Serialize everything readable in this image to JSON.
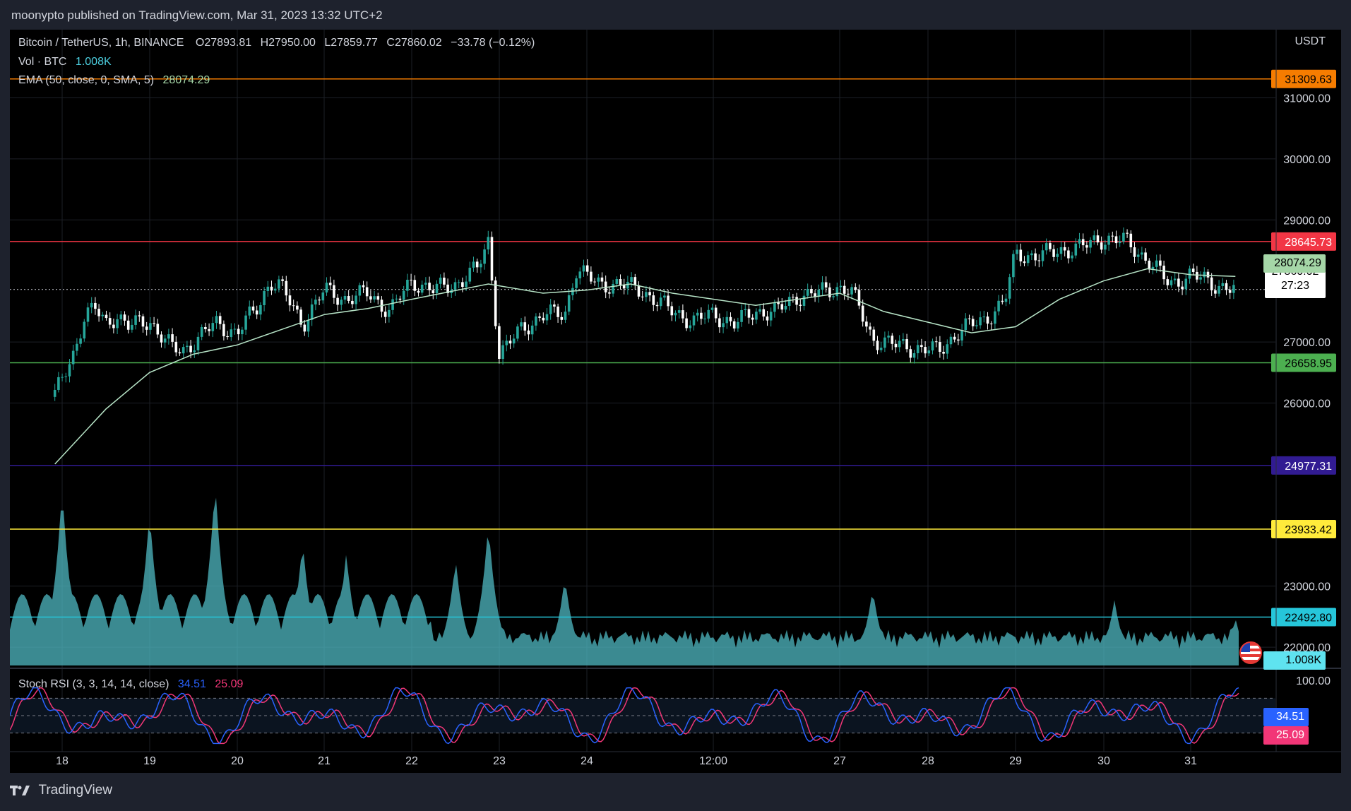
{
  "header": {
    "published": "moonypto published on TradingView.com, Mar 31, 2023 13:32 UTC+2"
  },
  "legend": {
    "symbol": "Bitcoin / TetherUS, 1h, BINANCE",
    "o_label": "O",
    "o": "27893.81",
    "h_label": "H",
    "h": "27950.00",
    "l_label": "L",
    "l": "27859.77",
    "c_label": "C",
    "c": "27860.02",
    "change": "−33.78 (−0.12%)",
    "vol_label": "Vol · BTC",
    "vol": "1.008K",
    "ema_label": "EMA (50, close, 0, SMA, 5)",
    "ema": "28074.29",
    "stoch_label": "Stoch RSI (3, 3, 14, 14, close)",
    "stoch_k": "34.51",
    "stoch_d": "25.09"
  },
  "price_axis": {
    "currency": "USDT",
    "ticks": [
      "31000.00",
      "30000.00",
      "29000.00",
      "27000.00",
      "26000.00",
      "23000.00",
      "22000.00"
    ]
  },
  "stoch_axis": {
    "ticks": [
      "100.00"
    ]
  },
  "time_axis": {
    "labels": [
      "18",
      "19",
      "20",
      "21",
      "22",
      "23",
      "24",
      "12:00",
      "27",
      "28",
      "29",
      "30",
      "31"
    ]
  },
  "price_lines": [
    {
      "value": "31309.63",
      "color": "#f57c00",
      "text_color": "#000000"
    },
    {
      "value": "28645.73",
      "color": "#f23645",
      "text_color": "#ffffff"
    },
    {
      "value": "26658.95",
      "color": "#4caf50",
      "text_color": "#000000"
    },
    {
      "value": "24977.31",
      "color": "#311b92",
      "text_color": "#ffffff"
    },
    {
      "value": "23933.42",
      "color": "#ffeb3b",
      "text_color": "#000000"
    },
    {
      "value": "22492.80",
      "color": "#26c6da",
      "text_color": "#000000"
    }
  ],
  "markers": {
    "ema": {
      "value": "28074.29",
      "color": "#a5d6a7"
    },
    "last": {
      "value": "27860.02",
      "countdown": "27:23"
    },
    "volume": {
      "value": "1.008K",
      "color": "#5fe3f0"
    },
    "stoch_k": {
      "value": "34.51",
      "color": "#2962ff"
    },
    "stoch_d": {
      "value": "25.09",
      "color": "#f23677"
    }
  },
  "colors": {
    "up": "#26a69a",
    "down": "#ef5350",
    "ema": "#b7e4c7",
    "volume": "#4fb8c2",
    "stoch_k": "#2962ff",
    "stoch_d": "#f23677"
  },
  "footer": {
    "brand": "TradingView"
  },
  "chart_data": {
    "type": "candlestick",
    "symbol": "BTCUSDT",
    "interval": "1h",
    "y_range": [
      21700,
      31700
    ],
    "price_series": [
      [
        "17 22:00",
        26100
      ],
      [
        "18 00:00",
        26400
      ],
      [
        "18 03:00",
        26800
      ],
      [
        "18 06:00",
        27400
      ],
      [
        "18 09:00",
        27550
      ],
      [
        "18 12:00",
        27300
      ],
      [
        "18 15:00",
        27450
      ],
      [
        "18 18:00",
        27250
      ],
      [
        "19 00:00",
        27350
      ],
      [
        "19 06:00",
        26900
      ],
      [
        "19 09:00",
        26850
      ],
      [
        "19 12:00",
        27000
      ],
      [
        "19 15:00",
        27150
      ],
      [
        "19 18:00",
        27300
      ],
      [
        "20 00:00",
        27150
      ],
      [
        "20 06:00",
        27600
      ],
      [
        "20 09:00",
        28000
      ],
      [
        "20 12:00",
        27900
      ],
      [
        "20 18:00",
        27300
      ],
      [
        "21 00:00",
        27850
      ],
      [
        "21 06:00",
        27700
      ],
      [
        "21 12:00",
        27800
      ],
      [
        "21 18:00",
        27500
      ],
      [
        "22 00:00",
        28000
      ],
      [
        "22 06:00",
        27850
      ],
      [
        "22 12:00",
        27950
      ],
      [
        "22 18:00",
        28200
      ],
      [
        "22 21:00",
        28650
      ],
      [
        "23 00:00",
        26800
      ],
      [
        "23 06:00",
        27200
      ],
      [
        "23 12:00",
        27450
      ],
      [
        "23 18:00",
        27450
      ],
      [
        "23 21:00",
        28200
      ],
      [
        "24 03:00",
        27950
      ],
      [
        "24 09:00",
        27950
      ],
      [
        "24 15:00",
        27850
      ],
      [
        "25 00:00",
        27500
      ],
      [
        "25 06:00",
        27350
      ],
      [
        "25 12:00",
        27450
      ],
      [
        "25 18:00",
        27300
      ],
      [
        "26 00:00",
        27500
      ],
      [
        "26 06:00",
        27500
      ],
      [
        "26 12:00",
        27750
      ],
      [
        "26 18:00",
        27800
      ],
      [
        "27 00:00",
        27900
      ],
      [
        "27 03:00",
        27850
      ],
      [
        "27 09:00",
        27050
      ],
      [
        "27 15:00",
        26950
      ],
      [
        "27 21:00",
        26900
      ],
      [
        "28 03:00",
        26850
      ],
      [
        "28 09:00",
        27200
      ],
      [
        "28 15:00",
        27350
      ],
      [
        "28 21:00",
        27650
      ],
      [
        "29 00:00",
        28450
      ],
      [
        "29 06:00",
        28400
      ],
      [
        "29 12:00",
        28500
      ],
      [
        "29 18:00",
        28550
      ],
      [
        "30 00:00",
        28700
      ],
      [
        "30 06:00",
        28650
      ],
      [
        "30 12:00",
        28350
      ],
      [
        "30 18:00",
        27950
      ],
      [
        "31 00:00",
        28100
      ],
      [
        "31 06:00",
        27950
      ],
      [
        "31 12:00",
        27860
      ]
    ],
    "ema_50": [
      [
        "17 22:00",
        25000
      ],
      [
        "18 12:00",
        25900
      ],
      [
        "19 00:00",
        26500
      ],
      [
        "19 12:00",
        26800
      ],
      [
        "20 00:00",
        26950
      ],
      [
        "20 12:00",
        27200
      ],
      [
        "21 00:00",
        27450
      ],
      [
        "21 12:00",
        27550
      ],
      [
        "22 00:00",
        27700
      ],
      [
        "22 21:00",
        27950
      ],
      [
        "23 12:00",
        27800
      ],
      [
        "24 00:00",
        27850
      ],
      [
        "24 12:00",
        27950
      ],
      [
        "25 00:00",
        27800
      ],
      [
        "26 00:00",
        27600
      ],
      [
        "27 00:00",
        27800
      ],
      [
        "27 12:00",
        27500
      ],
      [
        "28 12:00",
        27150
      ],
      [
        "29 00:00",
        27250
      ],
      [
        "29 12:00",
        27700
      ],
      [
        "30 00:00",
        28000
      ],
      [
        "30 12:00",
        28200
      ],
      [
        "31 00:00",
        28100
      ],
      [
        "31 12:00",
        28074
      ]
    ],
    "volume_btc_peaks": [
      [
        "18 00:00",
        30
      ],
      [
        "19 00:00",
        26
      ],
      [
        "19 18:00",
        31
      ],
      [
        "20 18:00",
        21
      ],
      [
        "21 06:00",
        19
      ],
      [
        "22 12:00",
        18
      ],
      [
        "22 21:00",
        24
      ],
      [
        "23 18:00",
        15
      ],
      [
        "27 09:00",
        13
      ],
      [
        "30 03:00",
        11
      ],
      [
        "31 12:00",
        8
      ]
    ],
    "stoch_rsi": {
      "range": [
        0,
        100
      ],
      "k_last": 34.51,
      "d_last": 25.09
    }
  }
}
